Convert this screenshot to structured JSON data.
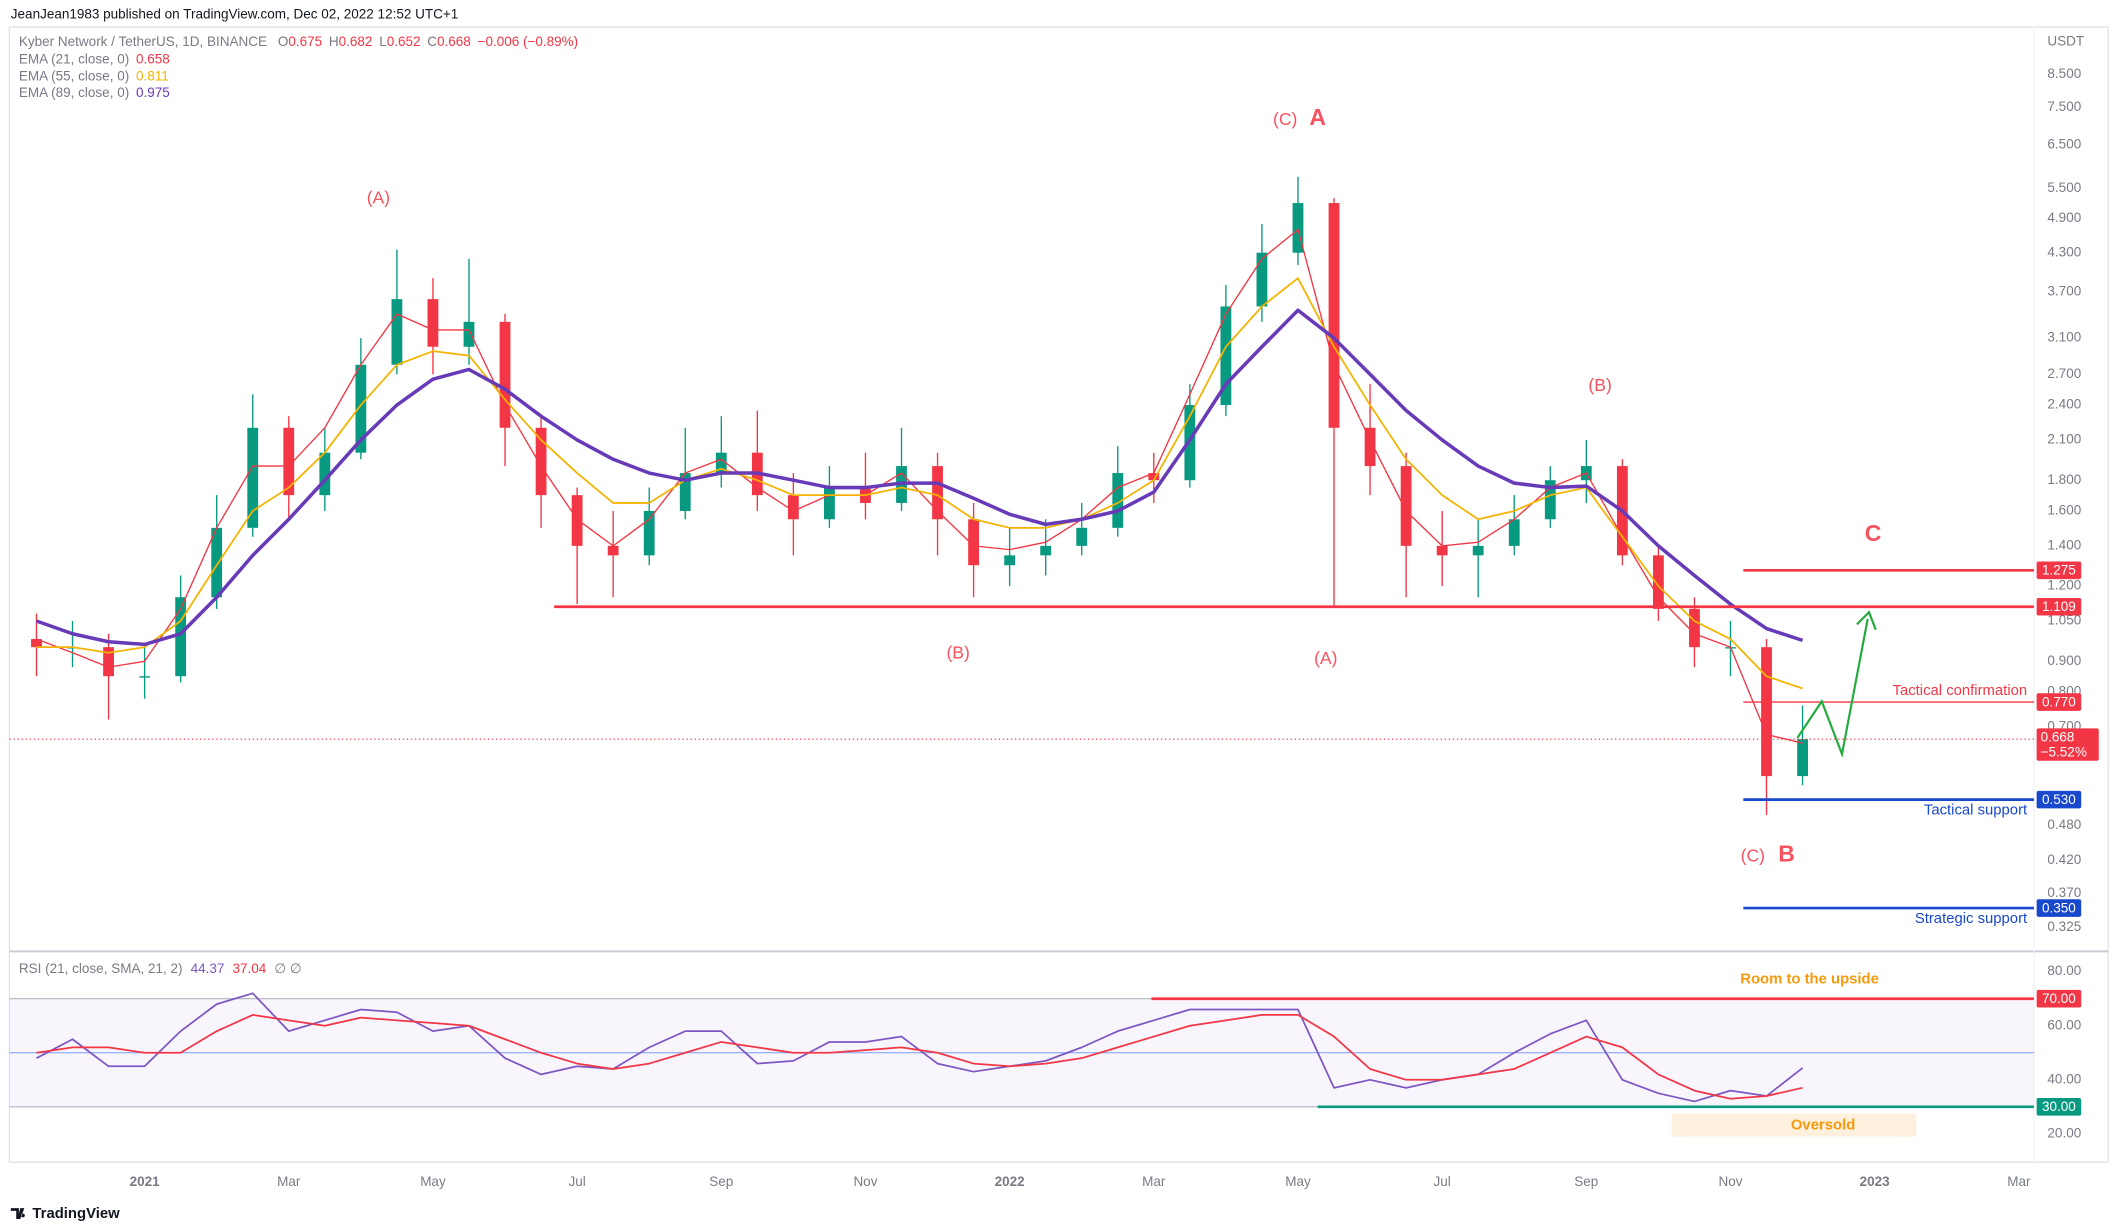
{
  "header": {
    "published": "JeanJean1983 published on TradingView.com, Dec 02, 2022 12:52 UTC+1",
    "footer": "TradingView"
  },
  "chart_data": [
    {
      "type": "candlestick",
      "title": "Kyber Network / TetherUS, 1D, BINANCE",
      "quote": [
        {
          "label": "O",
          "value": 0.675
        },
        {
          "label": "H",
          "value": 0.682
        },
        {
          "label": "L",
          "value": 0.652
        },
        {
          "label": "C",
          "value": 0.668
        }
      ],
      "change": "−0.006 (−0.89%)",
      "currency": "USDT",
      "categories": [
        null,
        null,
        null,
        "2021",
        null,
        null,
        null,
        "Mar",
        null,
        null,
        null,
        "May",
        null,
        null,
        null,
        "Jul",
        null,
        null,
        null,
        "Sep",
        null,
        null,
        null,
        "Nov",
        null,
        null,
        null,
        "2022",
        null,
        null,
        null,
        "Mar",
        null,
        null,
        null,
        "May",
        null,
        null,
        null,
        "Jul",
        null,
        null,
        null,
        "Sep",
        null,
        null,
        null,
        "Nov",
        null,
        null,
        null,
        "2023",
        null,
        null,
        null,
        "Mar"
      ],
      "open": [
        0.98,
        0.95,
        0.95,
        0.85,
        0.85,
        1.15,
        1.5,
        2.2,
        1.7,
        2.0,
        2.8,
        3.6,
        3.0,
        3.3,
        2.2,
        1.7,
        1.4,
        1.35,
        1.6,
        1.85,
        2.0,
        1.7,
        1.55,
        1.75,
        1.65,
        1.9,
        1.55,
        1.3,
        1.35,
        1.4,
        1.5,
        1.85,
        1.8,
        2.4,
        3.5,
        4.3,
        5.2,
        2.2,
        1.9,
        1.4,
        1.35,
        1.4,
        1.55,
        1.8,
        1.9,
        1.35,
        1.1,
        0.95,
        0.95,
        0.58,
        null,
        null,
        null,
        null,
        null,
        null
      ],
      "high": [
        1.08,
        1.05,
        1.0,
        0.95,
        1.25,
        1.7,
        2.5,
        2.3,
        2.2,
        3.1,
        4.35,
        3.9,
        4.2,
        3.4,
        2.3,
        1.75,
        1.6,
        1.75,
        2.2,
        2.3,
        2.35,
        1.85,
        1.9,
        2.0,
        2.2,
        2.0,
        1.65,
        1.5,
        1.55,
        1.65,
        2.05,
        2.0,
        2.6,
        3.8,
        4.8,
        5.75,
        5.3,
        2.6,
        2.0,
        1.6,
        1.55,
        1.7,
        1.9,
        2.1,
        1.95,
        1.4,
        1.15,
        1.05,
        0.98,
        0.76,
        null,
        null,
        null,
        null,
        null,
        null
      ],
      "low": [
        0.85,
        0.88,
        0.72,
        0.78,
        0.83,
        1.1,
        1.45,
        1.55,
        1.6,
        1.95,
        2.7,
        2.7,
        2.8,
        1.9,
        1.5,
        1.12,
        1.15,
        1.3,
        1.55,
        1.75,
        1.6,
        1.35,
        1.5,
        1.55,
        1.6,
        1.35,
        1.15,
        1.2,
        1.25,
        1.35,
        1.45,
        1.65,
        1.75,
        2.3,
        3.3,
        4.1,
        1.11,
        1.7,
        1.15,
        1.2,
        1.15,
        1.35,
        1.5,
        1.65,
        1.3,
        1.05,
        0.88,
        0.85,
        0.5,
        0.56,
        null,
        null,
        null,
        null,
        null,
        null
      ],
      "close": [
        0.95,
        0.95,
        0.85,
        0.85,
        1.15,
        1.5,
        2.2,
        1.7,
        2.0,
        2.8,
        3.6,
        3.0,
        3.3,
        2.2,
        1.7,
        1.4,
        1.35,
        1.6,
        1.85,
        2.0,
        1.7,
        1.55,
        1.75,
        1.65,
        1.9,
        1.55,
        1.3,
        1.35,
        1.4,
        1.5,
        1.85,
        1.8,
        2.4,
        3.5,
        4.3,
        5.2,
        2.2,
        1.9,
        1.4,
        1.35,
        1.4,
        1.55,
        1.8,
        1.9,
        1.35,
        1.1,
        0.95,
        0.95,
        0.58,
        0.668,
        null,
        null,
        null,
        null,
        null,
        null
      ],
      "up_color": "#089981",
      "down_color": "#f23645",
      "series": [
        {
          "name": "EMA (21, close, 0)",
          "color": "#f23645",
          "values": [
            0.98,
            0.93,
            0.88,
            0.9,
            1.1,
            1.5,
            1.9,
            1.9,
            2.2,
            2.8,
            3.4,
            3.2,
            3.2,
            2.4,
            1.9,
            1.55,
            1.4,
            1.55,
            1.85,
            1.95,
            1.75,
            1.6,
            1.7,
            1.7,
            1.85,
            1.6,
            1.4,
            1.38,
            1.42,
            1.55,
            1.75,
            1.85,
            2.5,
            3.4,
            4.2,
            4.7,
            2.8,
            2.1,
            1.6,
            1.4,
            1.42,
            1.55,
            1.75,
            1.85,
            1.45,
            1.15,
            1.0,
            0.95,
            0.68,
            0.658,
            null,
            null,
            null,
            null,
            null,
            null
          ]
        },
        {
          "name": "EMA (55, close, 0)",
          "color": "#f5b300",
          "values": [
            0.95,
            0.95,
            0.93,
            0.95,
            1.05,
            1.3,
            1.6,
            1.75,
            2.0,
            2.4,
            2.8,
            2.95,
            2.9,
            2.45,
            2.1,
            1.85,
            1.65,
            1.65,
            1.8,
            1.88,
            1.8,
            1.7,
            1.7,
            1.7,
            1.75,
            1.7,
            1.55,
            1.5,
            1.5,
            1.55,
            1.65,
            1.8,
            2.3,
            3.0,
            3.5,
            3.9,
            3.0,
            2.4,
            1.95,
            1.7,
            1.55,
            1.6,
            1.7,
            1.75,
            1.45,
            1.2,
            1.05,
            0.98,
            0.85,
            0.811,
            null,
            null,
            null,
            null,
            null,
            null
          ]
        },
        {
          "name": "EMA (89, close, 0)",
          "color": "#673ab7",
          "values": [
            1.05,
            1.0,
            0.97,
            0.96,
            1.0,
            1.15,
            1.35,
            1.55,
            1.8,
            2.1,
            2.4,
            2.65,
            2.75,
            2.55,
            2.3,
            2.1,
            1.95,
            1.85,
            1.8,
            1.85,
            1.85,
            1.8,
            1.75,
            1.75,
            1.78,
            1.78,
            1.68,
            1.58,
            1.52,
            1.55,
            1.6,
            1.72,
            2.1,
            2.6,
            3.0,
            3.45,
            3.1,
            2.7,
            2.35,
            2.1,
            1.9,
            1.78,
            1.75,
            1.76,
            1.6,
            1.4,
            1.25,
            1.12,
            1.02,
            0.975,
            null,
            null,
            null,
            null,
            null,
            null
          ]
        }
      ],
      "log_scale": true,
      "ylim": [
        0.298,
        10.2
      ],
      "yticks": [
        {
          "value": 8.5,
          "label": "8.500"
        },
        {
          "value": 7.5,
          "label": "7.500"
        },
        {
          "value": 6.5,
          "label": "6.500"
        },
        {
          "value": 5.5,
          "label": "5.500"
        },
        {
          "value": 4.9,
          "label": "4.900"
        },
        {
          "value": 4.3,
          "label": "4.300"
        },
        {
          "value": 3.7,
          "label": "3.700"
        },
        {
          "value": 3.1,
          "label": "3.100"
        },
        {
          "value": 2.7,
          "label": "2.700"
        },
        {
          "value": 2.4,
          "label": "2.400"
        },
        {
          "value": 2.1,
          "label": "2.100"
        },
        {
          "value": 1.8,
          "label": "1.800"
        },
        {
          "value": 1.6,
          "label": "1.600"
        },
        {
          "value": 1.4,
          "label": "1.400"
        },
        {
          "value": 1.2,
          "label": "1.200"
        },
        {
          "value": 1.05,
          "label": "1.050"
        },
        {
          "value": 0.9,
          "label": "0.900"
        },
        {
          "value": 0.8,
          "label": "0.800"
        },
        {
          "value": 0.7,
          "label": "0.700"
        },
        {
          "value": 0.48,
          "label": "0.480"
        },
        {
          "value": 0.42,
          "label": "0.420"
        },
        {
          "value": 0.37,
          "label": "0.370"
        },
        {
          "value": 0.325,
          "label": "0.325"
        }
      ],
      "last_price": {
        "value": 0.668,
        "change": "−5.52%",
        "color": "#f23645"
      },
      "levels": [
        {
          "value": 1.275,
          "color": "#f23645"
        },
        {
          "value": 1.109,
          "color": "#f23645"
        },
        {
          "value": 0.77,
          "label": "0.770",
          "text": "Tactical confirmation",
          "color": "#f23645"
        },
        {
          "value": 0.53,
          "label": "0.530",
          "text": "Tactical support",
          "color": "#1848cc"
        },
        {
          "value": 0.35,
          "label": "0.350",
          "text": "Strategic support",
          "color": "#1848cc"
        }
      ],
      "annotations": [
        "(A)",
        "(C)",
        "A",
        "(B)",
        "C",
        "(B)",
        "(A)",
        "(C)",
        "B"
      ]
    },
    {
      "type": "line",
      "title": "RSI (21, close, SMA, 21, 2)",
      "legend_suffix": "∅ ∅",
      "series": [
        {
          "color": "#7e57c2",
          "values": [
            48,
            55,
            45,
            45,
            58,
            68,
            72,
            58,
            62,
            66,
            65,
            58,
            60,
            48,
            42,
            45,
            44,
            52,
            58,
            58,
            46,
            47,
            54,
            54,
            56,
            46,
            43,
            45,
            47,
            52,
            58,
            62,
            66,
            66,
            66,
            66,
            37,
            40,
            37,
            40,
            42,
            50,
            57,
            62,
            40,
            35,
            32,
            36,
            34,
            44.37,
            null,
            null,
            null,
            null,
            null,
            null
          ]
        },
        {
          "color": "#f23645",
          "values": [
            50,
            52,
            52,
            50,
            50,
            58,
            64,
            62,
            60,
            63,
            62,
            61,
            60,
            55,
            50,
            46,
            44,
            46,
            50,
            54,
            52,
            50,
            50,
            51,
            52,
            50,
            46,
            45,
            46,
            48,
            52,
            56,
            60,
            62,
            64,
            64,
            56,
            44,
            40,
            40,
            42,
            44,
            50,
            56,
            52,
            42,
            36,
            33,
            34,
            37.04,
            null,
            null,
            null,
            null,
            null,
            null
          ]
        }
      ],
      "ylim": [
        10.5,
        86
      ],
      "yticks": [
        {
          "value": 80,
          "label": "80.00"
        },
        {
          "value": 60,
          "label": "60.00"
        },
        {
          "value": 40,
          "label": "40.00"
        },
        {
          "value": 20,
          "label": "20.00"
        }
      ],
      "band": {
        "upper": 70,
        "lower": 30,
        "middle": 50,
        "color": "#7e57c2"
      },
      "levels": [
        {
          "value": 70,
          "label": "70.00",
          "color": "#f23645"
        },
        {
          "value": 30,
          "label": "30.00",
          "color": "#089981"
        }
      ],
      "annotations": [
        "Room to the upside",
        "Oversold"
      ]
    }
  ]
}
